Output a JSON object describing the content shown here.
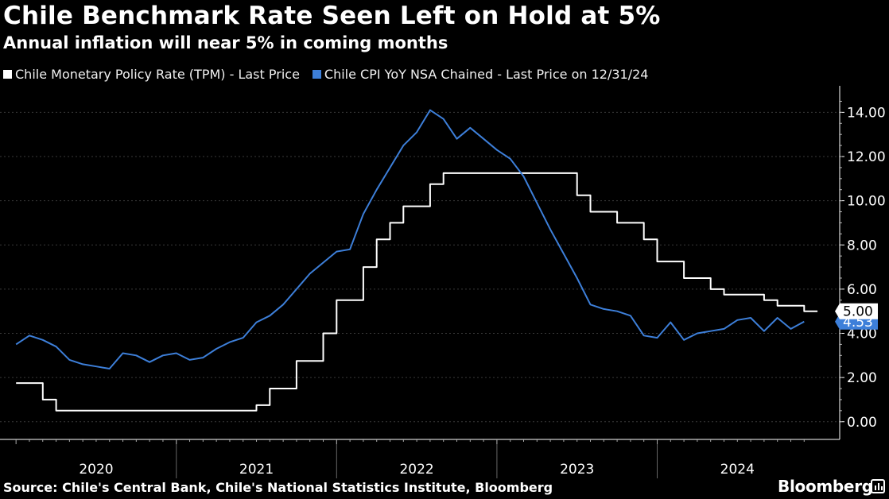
{
  "title": "Chile Benchmark Rate Seen Left on Hold at 5%",
  "subtitle": "Annual inflation will near 5% in coming months",
  "footer": {
    "source": "Source: Chile's Central Bank, Chile's National Statistics Institute, Bloomberg",
    "brand": "Bloomberg"
  },
  "colors": {
    "background": "#000000",
    "rate": "#ffffff",
    "cpi": "#3d7fd9",
    "grid": "#444444"
  },
  "chart_data": {
    "type": "line",
    "title": "Chile Benchmark Rate Seen Left on Hold at 5%",
    "subtitle": "Annual inflation will near 5% in coming months",
    "xlabel": "",
    "ylabel": "",
    "x_tick_labels": [
      "2020",
      "2021",
      "2022",
      "2023",
      "2024"
    ],
    "y_tick_labels": [
      "0.00",
      "2.00",
      "4.00",
      "6.00",
      "8.00",
      "10.00",
      "12.00",
      "14.00"
    ],
    "ylim": [
      -0.8,
      15.2
    ],
    "yaxis_position": "right",
    "grid": true,
    "legend_position": "top-left",
    "series": [
      {
        "name": "Chile Monetary Policy Rate (TPM) - Last Price",
        "color": "#ffffff",
        "step": true,
        "last_value_label": "5.00",
        "points": [
          [
            "2020-01",
            1.75
          ],
          [
            "2020-03",
            1.0
          ],
          [
            "2020-04",
            0.5
          ],
          [
            "2021-07",
            0.75
          ],
          [
            "2021-08",
            1.5
          ],
          [
            "2021-10",
            2.75
          ],
          [
            "2021-12",
            4.0
          ],
          [
            "2022-01",
            5.5
          ],
          [
            "2022-03",
            7.0
          ],
          [
            "2022-04",
            8.25
          ],
          [
            "2022-05",
            9.0
          ],
          [
            "2022-06",
            9.75
          ],
          [
            "2022-08",
            10.75
          ],
          [
            "2022-09",
            11.25
          ],
          [
            "2023-07",
            10.25
          ],
          [
            "2023-08",
            9.5
          ],
          [
            "2023-10",
            9.0
          ],
          [
            "2023-12",
            8.25
          ],
          [
            "2024-01",
            7.25
          ],
          [
            "2024-03",
            6.5
          ],
          [
            "2024-05",
            6.0
          ],
          [
            "2024-06",
            5.75
          ],
          [
            "2024-09",
            5.5
          ],
          [
            "2024-10",
            5.25
          ],
          [
            "2024-12",
            5.0
          ],
          [
            "2025-01",
            5.0
          ]
        ]
      },
      {
        "name": "Chile CPI YoY NSA Chained - Last Price on 12/31/24",
        "color": "#3d7fd9",
        "step": false,
        "last_value_label": "4.53",
        "points": [
          [
            "2020-01",
            3.5
          ],
          [
            "2020-02",
            3.9
          ],
          [
            "2020-03",
            3.7
          ],
          [
            "2020-04",
            3.4
          ],
          [
            "2020-05",
            2.8
          ],
          [
            "2020-06",
            2.6
          ],
          [
            "2020-07",
            2.5
          ],
          [
            "2020-08",
            2.4
          ],
          [
            "2020-09",
            3.1
          ],
          [
            "2020-10",
            3.0
          ],
          [
            "2020-11",
            2.7
          ],
          [
            "2020-12",
            3.0
          ],
          [
            "2021-01",
            3.1
          ],
          [
            "2021-02",
            2.8
          ],
          [
            "2021-03",
            2.9
          ],
          [
            "2021-04",
            3.3
          ],
          [
            "2021-05",
            3.6
          ],
          [
            "2021-06",
            3.8
          ],
          [
            "2021-07",
            4.5
          ],
          [
            "2021-08",
            4.8
          ],
          [
            "2021-09",
            5.3
          ],
          [
            "2021-10",
            6.0
          ],
          [
            "2021-11",
            6.7
          ],
          [
            "2021-12",
            7.2
          ],
          [
            "2022-01",
            7.7
          ],
          [
            "2022-02",
            7.8
          ],
          [
            "2022-03",
            9.4
          ],
          [
            "2022-04",
            10.5
          ],
          [
            "2022-05",
            11.5
          ],
          [
            "2022-06",
            12.5
          ],
          [
            "2022-07",
            13.1
          ],
          [
            "2022-08",
            14.1
          ],
          [
            "2022-09",
            13.7
          ],
          [
            "2022-10",
            12.8
          ],
          [
            "2022-11",
            13.3
          ],
          [
            "2022-12",
            12.8
          ],
          [
            "2023-01",
            12.3
          ],
          [
            "2023-02",
            11.9
          ],
          [
            "2023-03",
            11.1
          ],
          [
            "2023-04",
            9.9
          ],
          [
            "2023-05",
            8.7
          ],
          [
            "2023-06",
            7.6
          ],
          [
            "2023-07",
            6.5
          ],
          [
            "2023-08",
            5.3
          ],
          [
            "2023-09",
            5.1
          ],
          [
            "2023-10",
            5.0
          ],
          [
            "2023-11",
            4.8
          ],
          [
            "2023-12",
            3.9
          ],
          [
            "2024-01",
            3.8
          ],
          [
            "2024-02",
            4.5
          ],
          [
            "2024-03",
            3.7
          ],
          [
            "2024-04",
            4.0
          ],
          [
            "2024-05",
            4.1
          ],
          [
            "2024-06",
            4.2
          ],
          [
            "2024-07",
            4.6
          ],
          [
            "2024-08",
            4.7
          ],
          [
            "2024-09",
            4.1
          ],
          [
            "2024-10",
            4.7
          ],
          [
            "2024-11",
            4.2
          ],
          [
            "2024-12",
            4.53
          ]
        ]
      }
    ]
  }
}
